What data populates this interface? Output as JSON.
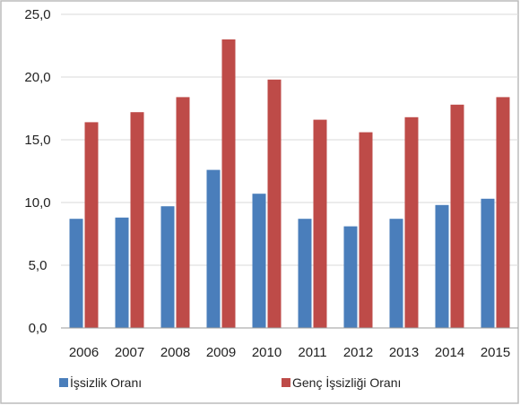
{
  "chart_data": {
    "type": "bar",
    "title": "",
    "xlabel": "",
    "ylabel": "",
    "categories": [
      "2006",
      "2007",
      "2008",
      "2009",
      "2010",
      "2011",
      "2012",
      "2013",
      "2014",
      "2015"
    ],
    "series": [
      {
        "name": "İşsizlik Oranı",
        "color": "#4a7ebb",
        "values": [
          8.7,
          8.8,
          9.7,
          12.6,
          10.7,
          8.7,
          8.1,
          8.7,
          9.8,
          10.3
        ]
      },
      {
        "name": "Genç İşsizliği Oranı",
        "color": "#be4b48",
        "values": [
          16.4,
          17.2,
          18.4,
          23.0,
          19.8,
          16.6,
          15.6,
          16.8,
          17.8,
          18.4
        ]
      }
    ],
    "ylim": [
      0,
      25
    ],
    "yticks": [
      0,
      5,
      10,
      15,
      20,
      25
    ],
    "ytick_labels": [
      "0,0",
      "5,0",
      "10,0",
      "15,0",
      "20,0",
      "25,0"
    ],
    "grid": true,
    "legend_position": "bottom"
  }
}
